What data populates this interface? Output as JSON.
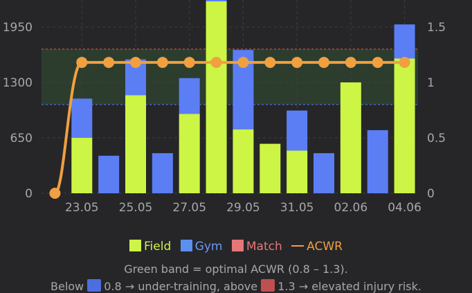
{
  "chart_data": {
    "type": "bar",
    "stacked": true,
    "x": [
      "22.05",
      "23.05",
      "24.05",
      "25.05",
      "26.05",
      "27.05",
      "28.05",
      "29.05",
      "30.05",
      "31.05",
      "01.06",
      "02.06",
      "03.06",
      "04.06"
    ],
    "x_tick_labels": [
      "23.05",
      "25.05",
      "27.05",
      "29.05",
      "31.05",
      "02.06",
      "04.06"
    ],
    "series": [
      {
        "name": "Field",
        "color": "#cdf545",
        "axis": "left",
        "values": [
          0,
          650,
          0,
          1150,
          0,
          930,
          2250,
          750,
          580,
          500,
          0,
          1300,
          0,
          1580
        ]
      },
      {
        "name": "Gym",
        "color": "#5b7ef5",
        "axis": "left",
        "values": [
          0,
          460,
          440,
          420,
          470,
          420,
          20,
          930,
          0,
          470,
          470,
          0,
          740,
          400
        ]
      },
      {
        "name": "Match",
        "color": "#e57777",
        "axis": "left",
        "values": [
          0,
          0,
          0,
          0,
          0,
          0,
          0,
          0,
          0,
          0,
          0,
          0,
          0,
          0
        ]
      },
      {
        "name": "ACWR",
        "color": "#f0a040",
        "type": "line",
        "axis": "right",
        "values": [
          0,
          1.18,
          1.18,
          1.18,
          1.18,
          1.18,
          1.18,
          1.18,
          1.18,
          1.18,
          1.18,
          1.18,
          1.18,
          1.18
        ]
      }
    ],
    "y_left": {
      "ticks": [
        0,
        650,
        1300,
        1950
      ],
      "tick_labels": [
        "0",
        "650",
        "1300",
        "1950"
      ],
      "ylim": [
        0,
        2250
      ]
    },
    "y_right": {
      "ticks": [
        0,
        0.5,
        1,
        1.5
      ],
      "tick_labels": [
        "0",
        "0.5",
        "1",
        "1.5"
      ],
      "ylim": [
        0,
        1.73
      ]
    },
    "bands": {
      "optimal": [
        0.8,
        1.3
      ],
      "under_line": 0.8,
      "over_line": 1.3,
      "band_color": "#2c3d2e",
      "under_color": "#4d6ee0",
      "over_color": "#c05050"
    },
    "grid": true,
    "legend": {
      "placement": "bottom",
      "items": [
        "Field",
        "Gym",
        "Match",
        "ACWR"
      ]
    }
  },
  "notes": {
    "line1": "Green band = optimal ACWR (0.8 – 1.3).",
    "line2_a": "Below",
    "line2_b": "0.8 → under-training, above",
    "line2_c": "1.3 → elevated injury risk."
  }
}
